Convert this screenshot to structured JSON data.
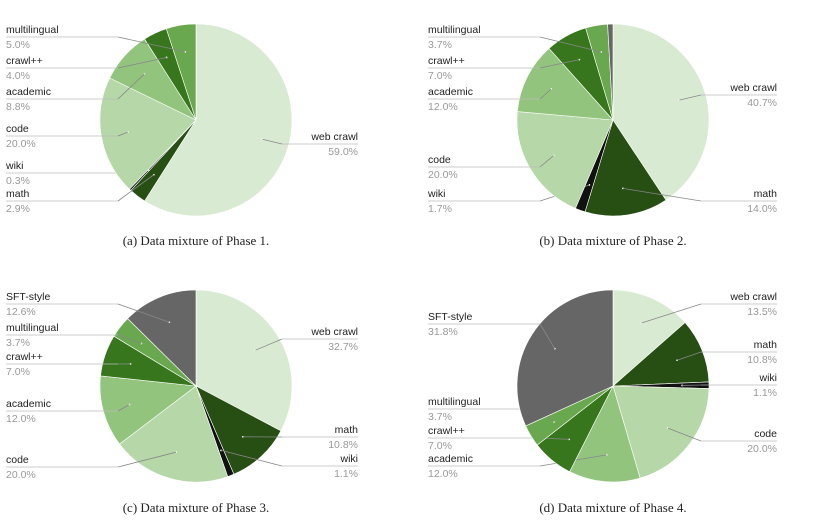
{
  "colors": {
    "web crawl": "#d9ead3",
    "math": "#274e13",
    "wiki": "#111111",
    "code": "#b6d7a8",
    "academic": "#93c47d",
    "crawl++": "#38761d",
    "multilingual": "#6aa84f",
    "SFT-style": "#666666"
  },
  "chart_data": [
    {
      "type": "pie",
      "caption": "(a) Data mixture of Phase 1.",
      "slices": [
        {
          "name": "web crawl",
          "value": 59.0,
          "label": "59.0%"
        },
        {
          "name": "math",
          "value": 2.9,
          "label": "2.9%"
        },
        {
          "name": "wiki",
          "value": 0.3,
          "label": "0.3%"
        },
        {
          "name": "code",
          "value": 20.0,
          "label": "20.0%"
        },
        {
          "name": "academic",
          "value": 8.8,
          "label": "8.8%"
        },
        {
          "name": "crawl++",
          "value": 4.0,
          "label": "4.0%"
        },
        {
          "name": "multilingual",
          "value": 5.0,
          "label": "5.0%"
        }
      ]
    },
    {
      "type": "pie",
      "caption": "(b) Data mixture of Phase 2.",
      "slices": [
        {
          "name": "web crawl",
          "value": 40.7,
          "label": "40.7%"
        },
        {
          "name": "math",
          "value": 14.0,
          "label": "14.0%"
        },
        {
          "name": "wiki",
          "value": 1.7,
          "label": "1.7%"
        },
        {
          "name": "code",
          "value": 20.0,
          "label": "20.0%"
        },
        {
          "name": "academic",
          "value": 12.0,
          "label": "12.0%"
        },
        {
          "name": "crawl++",
          "value": 7.0,
          "label": "7.0%"
        },
        {
          "name": "multilingual",
          "value": 3.7,
          "label": "3.7%"
        },
        {
          "name": "SFT-style",
          "value": 0.9,
          "label": ""
        }
      ]
    },
    {
      "type": "pie",
      "caption": "(c) Data mixture of Phase 3.",
      "slices": [
        {
          "name": "web crawl",
          "value": 32.7,
          "label": "32.7%"
        },
        {
          "name": "math",
          "value": 10.8,
          "label": "10.8%"
        },
        {
          "name": "wiki",
          "value": 1.1,
          "label": "1.1%"
        },
        {
          "name": "code",
          "value": 20.0,
          "label": "20.0%"
        },
        {
          "name": "academic",
          "value": 12.0,
          "label": "12.0%"
        },
        {
          "name": "crawl++",
          "value": 7.0,
          "label": "7.0%"
        },
        {
          "name": "multilingual",
          "value": 3.7,
          "label": "3.7%"
        },
        {
          "name": "SFT-style",
          "value": 12.6,
          "label": "12.6%"
        }
      ]
    },
    {
      "type": "pie",
      "caption": "(d) Data mixture of Phase 4.",
      "slices": [
        {
          "name": "web crawl",
          "value": 13.5,
          "label": "13.5%"
        },
        {
          "name": "math",
          "value": 10.8,
          "label": "10.8%"
        },
        {
          "name": "wiki",
          "value": 1.1,
          "label": "1.1%"
        },
        {
          "name": "code",
          "value": 20.0,
          "label": "20.0%"
        },
        {
          "name": "academic",
          "value": 12.0,
          "label": "12.0%"
        },
        {
          "name": "crawl++",
          "value": 7.0,
          "label": "7.0%"
        },
        {
          "name": "multilingual",
          "value": 3.7,
          "label": "3.7%"
        },
        {
          "name": "SFT-style",
          "value": 31.8,
          "label": "31.8%"
        }
      ]
    }
  ]
}
